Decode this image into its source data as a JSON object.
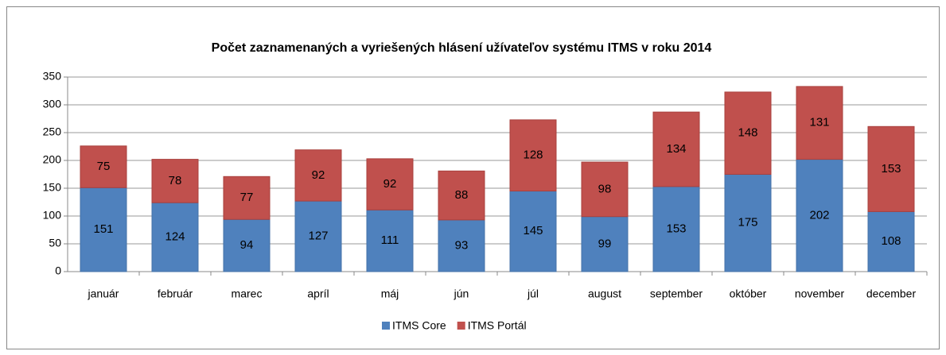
{
  "chart_data": {
    "type": "stacked_bar",
    "title": "Počet zaznamenaných a vyriešených hlásení užívateľov systému ITMS v roku 2014",
    "categories": [
      "január",
      "február",
      "marec",
      "apríl",
      "máj",
      "jún",
      "júl",
      "august",
      "september",
      "október",
      "november",
      "december"
    ],
    "series": [
      {
        "name": "ITMS Core",
        "color": "#4f81bd",
        "values": [
          151,
          124,
          94,
          127,
          111,
          93,
          145,
          99,
          153,
          175,
          202,
          108
        ]
      },
      {
        "name": "ITMS Portál",
        "color": "#c0504d",
        "values": [
          75,
          78,
          77,
          92,
          92,
          88,
          128,
          98,
          134,
          148,
          131,
          153
        ]
      }
    ],
    "ylim": [
      0,
      350
    ],
    "yticks": [
      0,
      50,
      100,
      150,
      200,
      250,
      300,
      350
    ],
    "grid": true,
    "legend": "bottom"
  }
}
